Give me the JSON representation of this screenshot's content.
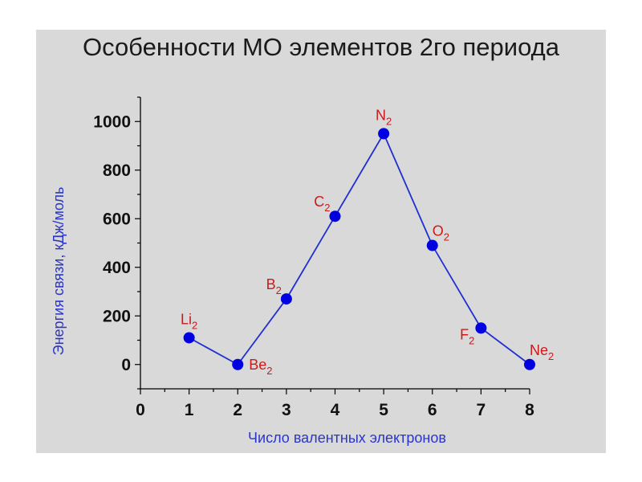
{
  "slide": {
    "background_color": "#d9d9d9"
  },
  "chart_data": {
    "type": "line",
    "title": "Особенности МО элементов 2го периода",
    "xlabel": "Число валентных электронов",
    "ylabel": "Энергия связи, кДж/моль",
    "xlim": [
      0,
      8
    ],
    "ylim": [
      -100,
      1100
    ],
    "xticks": [
      0,
      1,
      2,
      3,
      4,
      5,
      6,
      7,
      8
    ],
    "yticks": [
      0,
      200,
      400,
      600,
      800,
      1000
    ],
    "grid": false,
    "line_color": "#1f2fd0",
    "marker_color": "#0000e0",
    "point_label_color": "#cc1a1a",
    "axis_label_color": "#2b35c8",
    "series": [
      {
        "points": [
          {
            "x": 1,
            "y": 110,
            "label": "Li",
            "sub": "2",
            "pos": "above"
          },
          {
            "x": 2,
            "y": 0,
            "label": "Be",
            "sub": "2",
            "pos": "right"
          },
          {
            "x": 3,
            "y": 270,
            "label": "B",
            "sub": "2",
            "pos": "above-left"
          },
          {
            "x": 4,
            "y": 610,
            "label": "C",
            "sub": "2",
            "pos": "above-left"
          },
          {
            "x": 5,
            "y": 950,
            "label": "N",
            "sub": "2",
            "pos": "above"
          },
          {
            "x": 6,
            "y": 490,
            "label": "O",
            "sub": "2",
            "pos": "above-right"
          },
          {
            "x": 7,
            "y": 150,
            "label": "F",
            "sub": "2",
            "pos": "below-left"
          },
          {
            "x": 8,
            "y": 0,
            "label": "Ne",
            "sub": "2",
            "pos": "above-right"
          }
        ]
      }
    ]
  }
}
